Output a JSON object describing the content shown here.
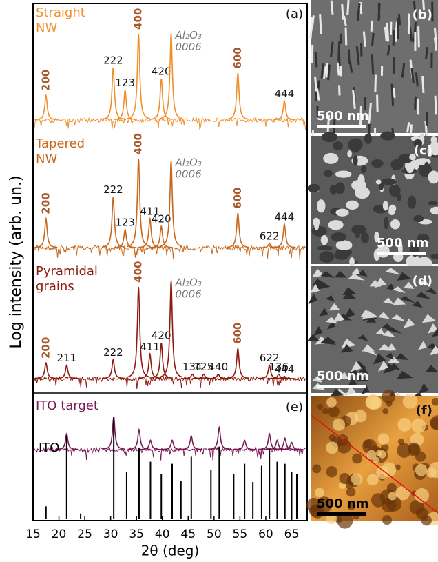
{
  "chart_data": {
    "type": "xrd",
    "xlabel": "2θ (deg)",
    "ylabel": "Log intensity (arb. un.)",
    "xlim": [
      15,
      68
    ],
    "xticks": [
      15,
      20,
      25,
      30,
      35,
      40,
      45,
      50,
      55,
      60,
      65
    ],
    "ylim": [
      0,
      100
    ],
    "panels": [
      {
        "tag": "(a)",
        "name": [
          "Straight",
          "NW"
        ],
        "color": "#f0902c",
        "peaks": [
          {
            "x": 17.5,
            "height": 30,
            "label": "200",
            "style": "bold"
          },
          {
            "x": 30.5,
            "height": 55,
            "label": "222"
          },
          {
            "x": 32.8,
            "height": 35,
            "label": "123"
          },
          {
            "x": 35.4,
            "height": 85,
            "label": "400",
            "style": "bold"
          },
          {
            "x": 39.8,
            "height": 45,
            "label": "420"
          },
          {
            "x": 41.7,
            "height": 85,
            "label": [
              "Al₂O₃",
              "0006"
            ],
            "style": "substrate"
          },
          {
            "x": 54.6,
            "height": 50,
            "label": "600",
            "style": "bold"
          },
          {
            "x": 63.6,
            "height": 25,
            "label": "444"
          }
        ]
      },
      {
        "name": [
          "Tapered",
          "NW"
        ],
        "color": "#c8681c",
        "peaks": [
          {
            "x": 17.5,
            "height": 35,
            "label": "200",
            "style": "bold"
          },
          {
            "x": 30.5,
            "height": 55,
            "label": "222"
          },
          {
            "x": 32.8,
            "height": 25,
            "label": "123"
          },
          {
            "x": 35.4,
            "height": 90,
            "label": "400",
            "style": "bold"
          },
          {
            "x": 37.6,
            "height": 35,
            "label": "411"
          },
          {
            "x": 39.8,
            "height": 28,
            "label": "420"
          },
          {
            "x": 41.7,
            "height": 88,
            "label": [
              "Al₂O₃",
              "0006"
            ],
            "style": "substrate"
          },
          {
            "x": 54.6,
            "height": 40,
            "label": "600",
            "style": "bold"
          },
          {
            "x": 60.7,
            "height": 12,
            "label": "622"
          },
          {
            "x": 63.6,
            "height": 30,
            "label": "444"
          }
        ]
      },
      {
        "name": [
          "Pyramidal",
          "grains"
        ],
        "color": "#8e1a10",
        "peaks": [
          {
            "x": 17.5,
            "height": 22,
            "label": "200",
            "style": "bold"
          },
          {
            "x": 21.5,
            "height": 20,
            "label": "211"
          },
          {
            "x": 30.5,
            "height": 25,
            "label": "222"
          },
          {
            "x": 35.4,
            "height": 90,
            "label": "400",
            "style": "bold"
          },
          {
            "x": 37.6,
            "height": 30,
            "label": "411"
          },
          {
            "x": 39.8,
            "height": 40,
            "label": "420"
          },
          {
            "x": 41.7,
            "height": 95,
            "label": [
              "Al₂O₃",
              "0006"
            ],
            "style": "substrate"
          },
          {
            "x": 45.8,
            "height": 12,
            "label": "134"
          },
          {
            "x": 48.0,
            "height": 12,
            "label": "125"
          },
          {
            "x": 50.8,
            "height": 12,
            "label": "440"
          },
          {
            "x": 54.6,
            "height": 35,
            "label": "600",
            "style": "bold"
          },
          {
            "x": 60.7,
            "height": 20,
            "label": "622"
          },
          {
            "x": 62.5,
            "height": 12,
            "label": "136"
          },
          {
            "x": 63.6,
            "height": 10,
            "label": "444"
          }
        ]
      },
      {
        "tag": "(e)",
        "name": [
          "ITO target"
        ],
        "color": "#7a1a55",
        "peaks": [
          {
            "x": 21.5,
            "height": 45
          },
          {
            "x": 30.6,
            "height": 85
          },
          {
            "x": 35.5,
            "height": 55
          },
          {
            "x": 37.7,
            "height": 30
          },
          {
            "x": 41.9,
            "height": 30
          },
          {
            "x": 45.6,
            "height": 40
          },
          {
            "x": 51.0,
            "height": 60
          },
          {
            "x": 55.9,
            "height": 30
          },
          {
            "x": 60.7,
            "height": 45
          },
          {
            "x": 62.2,
            "height": 30
          },
          {
            "x": 63.7,
            "height": 35
          },
          {
            "x": 65.0,
            "height": 25
          }
        ]
      }
    ],
    "reference": {
      "name": "ITO",
      "color": "#000000",
      "x": [
        17.5,
        21.5,
        24.2,
        30.6,
        33.1,
        35.5,
        37.7,
        39.8,
        41.9,
        43.6,
        45.6,
        49.4,
        51.0,
        53.8,
        55.9,
        57.5,
        59.2,
        60.7,
        62.2,
        63.7,
        65.0,
        66.0
      ],
      "values": [
        12,
        82,
        5,
        100,
        46,
        70,
        56,
        44,
        54,
        37,
        61,
        48,
        71,
        44,
        54,
        36,
        52,
        69,
        56,
        54,
        46,
        44
      ]
    }
  },
  "images": [
    {
      "tag": "(b)",
      "scale": "500 nm"
    },
    {
      "tag": "(c)",
      "scale": "500 nm"
    },
    {
      "tag": "(d)",
      "scale": "500 nm"
    },
    {
      "tag": "(f)",
      "scale": "500 nm"
    }
  ]
}
